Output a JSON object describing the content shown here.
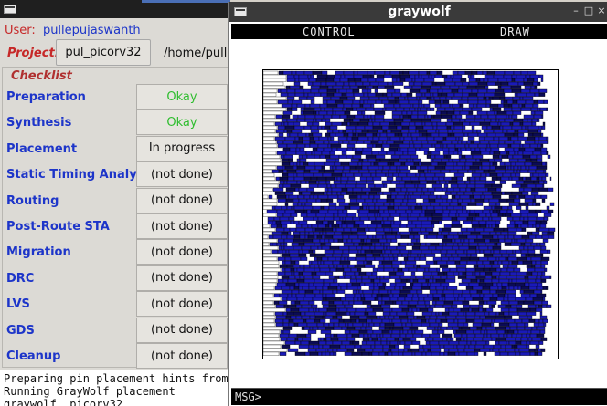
{
  "left_panel": {
    "user_label": "User:",
    "user_name": "pullepujaswanth",
    "project_label": "Project:",
    "project_name": "pul_picorv32",
    "project_path": "/home/pulle",
    "checklist_title": "Checklist",
    "steps": [
      {
        "label": "Preparation",
        "status": "Okay",
        "state": "ok"
      },
      {
        "label": "Synthesis",
        "status": "Okay",
        "state": "ok"
      },
      {
        "label": "Placement",
        "status": "In progress",
        "state": "running"
      },
      {
        "label": "Static Timing Analysis",
        "status": "(not done)",
        "state": "pending"
      },
      {
        "label": "Routing",
        "status": "(not done)",
        "state": "pending"
      },
      {
        "label": "Post-Route STA",
        "status": "(not done)",
        "state": "pending"
      },
      {
        "label": "Migration",
        "status": "(not done)",
        "state": "pending"
      },
      {
        "label": "DRC",
        "status": "(not done)",
        "state": "pending"
      },
      {
        "label": "LVS",
        "status": "(not done)",
        "state": "pending"
      },
      {
        "label": "GDS",
        "status": "(not done)",
        "state": "pending"
      },
      {
        "label": "Cleanup",
        "status": "(not done)",
        "state": "pending"
      }
    ],
    "log_lines": [
      "Preparing pin placement hints from pi",
      "Running GrayWolf placement",
      "graywolf  picorv32"
    ]
  },
  "graywolf": {
    "title": "graywolf",
    "min_glyph": "–",
    "max_glyph": "□",
    "close_glyph": "×",
    "menu_control": "CONTROL",
    "menu_draw": "DRAW",
    "msg_label": "MSG>"
  },
  "colors": {
    "cell_blue": "#1a1ab8",
    "cell_dark": "#0b0b55",
    "status_ok": "#2fbd2f",
    "step_label": "#1d35c9",
    "accent_red": "#c62828"
  }
}
